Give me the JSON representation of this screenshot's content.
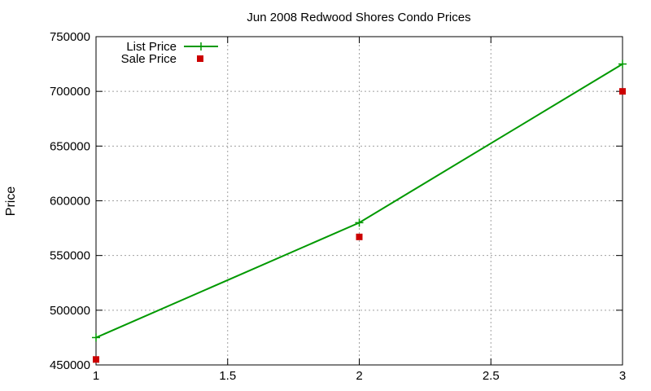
{
  "chart_data": {
    "type": "line",
    "title": "Jun 2008 Redwood Shores Condo Prices",
    "xlabel": "",
    "ylabel": "Price",
    "xlim": [
      1,
      3
    ],
    "ylim": [
      450000,
      750000
    ],
    "x_ticks": [
      1,
      1.5,
      2,
      2.5,
      3
    ],
    "x_tick_labels": [
      "1",
      "1.5",
      "2",
      "2.5",
      "3"
    ],
    "y_ticks": [
      450000,
      500000,
      550000,
      600000,
      650000,
      700000,
      750000
    ],
    "y_tick_labels": [
      "450000",
      "500000",
      "550000",
      "600000",
      "650000",
      "700000",
      "750000"
    ],
    "grid": true,
    "legend_position": "top-left",
    "series": [
      {
        "name": "List Price",
        "style": "line-with-plus-markers",
        "color": "#009900",
        "x": [
          1,
          2,
          3
        ],
        "y": [
          475000,
          580000,
          725000
        ]
      },
      {
        "name": "Sale Price",
        "style": "square-markers",
        "color": "#cc0000",
        "x": [
          1,
          2,
          3
        ],
        "y": [
          455000,
          567000,
          700000
        ]
      }
    ]
  }
}
